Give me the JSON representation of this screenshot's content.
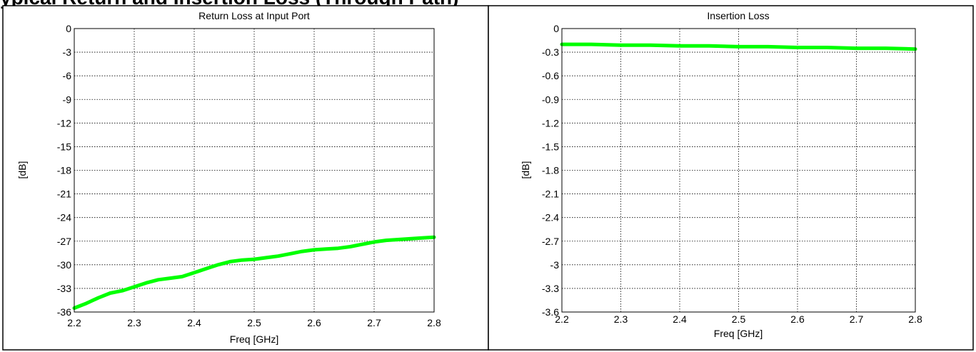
{
  "page": {
    "header_text": "ypical Return and Insertion Loss (Through Path)"
  },
  "chart_data": [
    {
      "type": "line",
      "title": "Return Loss at Input Port",
      "xlabel": "Freq [GHz]",
      "ylabel": "[dB]",
      "xlim": [
        2.2,
        2.8
      ],
      "ylim": [
        -36,
        0
      ],
      "xticks": [
        2.2,
        2.3,
        2.4,
        2.5,
        2.6,
        2.7,
        2.8
      ],
      "xtick_labels": [
        "2.2",
        "2.3",
        "2.4",
        "2.5",
        "2.6",
        "2.7",
        "2.8"
      ],
      "yticks": [
        0,
        -3,
        -6,
        -9,
        -12,
        -15,
        -18,
        -21,
        -24,
        -27,
        -30,
        -33,
        -36
      ],
      "ytick_labels": [
        "0",
        "-3",
        "-6",
        "-9",
        "-12",
        "-15",
        "-18",
        "-21",
        "-24",
        "-27",
        "-30",
        "-33",
        "-36"
      ],
      "grid": true,
      "series": [
        {
          "color": "#00ff00",
          "x": [
            2.2,
            2.22,
            2.24,
            2.26,
            2.28,
            2.3,
            2.32,
            2.34,
            2.36,
            2.38,
            2.4,
            2.42,
            2.44,
            2.46,
            2.48,
            2.5,
            2.52,
            2.54,
            2.56,
            2.58,
            2.6,
            2.62,
            2.64,
            2.66,
            2.68,
            2.7,
            2.72,
            2.74,
            2.76,
            2.78,
            2.8
          ],
          "y": [
            -35.5,
            -34.9,
            -34.2,
            -33.6,
            -33.3,
            -32.8,
            -32.3,
            -31.9,
            -31.7,
            -31.5,
            -31.0,
            -30.5,
            -30.0,
            -29.6,
            -29.4,
            -29.3,
            -29.1,
            -28.9,
            -28.6,
            -28.3,
            -28.1,
            -28.0,
            -27.9,
            -27.7,
            -27.4,
            -27.1,
            -26.9,
            -26.8,
            -26.7,
            -26.6,
            -26.5
          ]
        }
      ]
    },
    {
      "type": "line",
      "title": "Insertion Loss",
      "xlabel": "Freq [GHz]",
      "ylabel": "[dB]",
      "xlim": [
        2.2,
        2.8
      ],
      "ylim": [
        -3.6,
        0
      ],
      "xticks": [
        2.2,
        2.3,
        2.4,
        2.5,
        2.6,
        2.7,
        2.8
      ],
      "xtick_labels": [
        "2.2",
        "2.3",
        "2.4",
        "2.5",
        "2.6",
        "2.7",
        "2.8"
      ],
      "yticks": [
        0,
        -0.3,
        -0.6,
        -0.9,
        -1.2,
        -1.5,
        -1.8,
        -2.1,
        -2.4,
        -2.7,
        -3,
        -3.3,
        -3.6
      ],
      "ytick_labels": [
        "0",
        "-0.3",
        "-0.6",
        "-0.9",
        "-1.2",
        "-1.5",
        "-1.8",
        "-2.1",
        "-2.4",
        "-2.7",
        "-3",
        "-3.3",
        "-3.6"
      ],
      "grid": true,
      "series": [
        {
          "color": "#00ff00",
          "x": [
            2.2,
            2.25,
            2.3,
            2.35,
            2.4,
            2.45,
            2.5,
            2.55,
            2.6,
            2.65,
            2.7,
            2.75,
            2.8
          ],
          "y": [
            -0.2,
            -0.2,
            -0.21,
            -0.21,
            -0.22,
            -0.22,
            -0.23,
            -0.23,
            -0.24,
            -0.24,
            -0.25,
            -0.25,
            -0.26
          ]
        }
      ]
    }
  ]
}
